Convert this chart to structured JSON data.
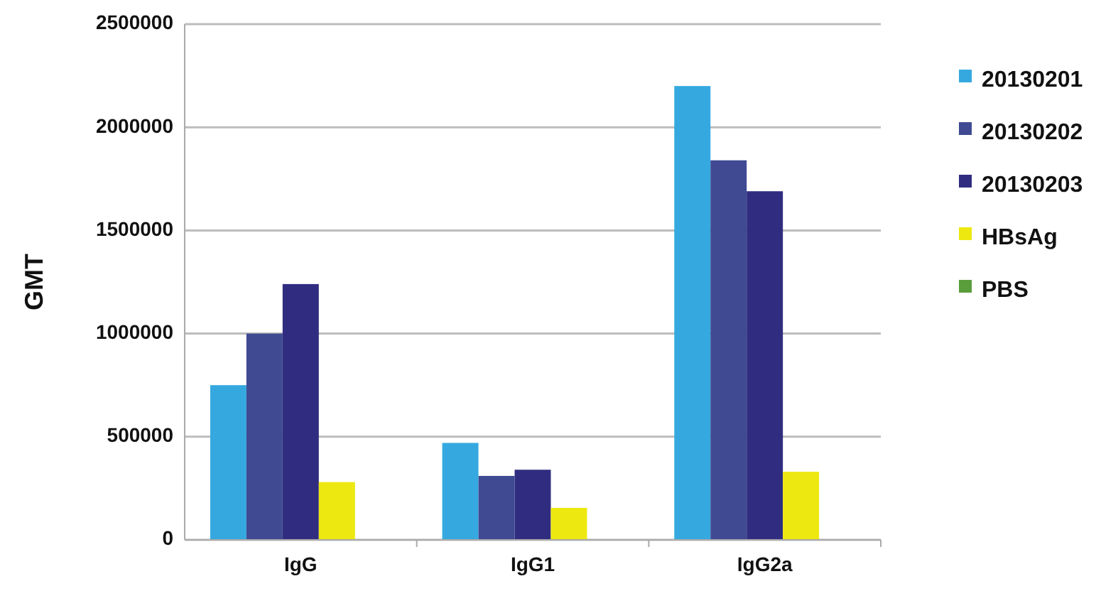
{
  "chart_data": {
    "type": "bar",
    "ylabel": "GMT",
    "categories": [
      "IgG",
      "IgG1",
      "IgG2a"
    ],
    "series": [
      {
        "name": "20130201",
        "color": "#35a9df",
        "values": [
          750000,
          470000,
          2200000
        ]
      },
      {
        "name": "20130202",
        "color": "#3f4a93",
        "values": [
          1000000,
          310000,
          1840000
        ]
      },
      {
        "name": "20130203",
        "color": "#302d80",
        "values": [
          1240000,
          340000,
          1690000
        ]
      },
      {
        "name": "HBsAg",
        "color": "#ede80f",
        "values": [
          280000,
          155000,
          330000
        ]
      },
      {
        "name": "PBS",
        "color": "#5a9e3c",
        "values": [
          0,
          0,
          0
        ]
      }
    ],
    "ylim": [
      0,
      2500000
    ],
    "yticks": [
      0,
      500000,
      1000000,
      1500000,
      2000000,
      2500000
    ],
    "grid": "y",
    "legend": "right"
  }
}
